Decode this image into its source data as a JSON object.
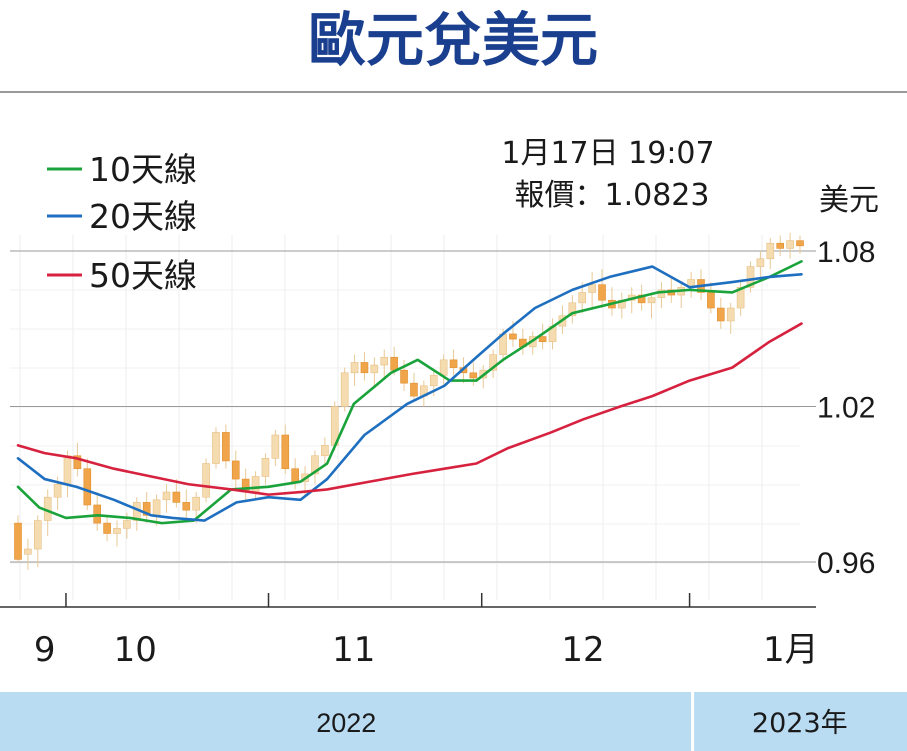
{
  "chart_data": {
    "type": "candlestick",
    "title": "歐元兌美元",
    "unit_label": "美元",
    "annotation": {
      "line1": "1月17日 19:07",
      "line2": "報價：1.0823"
    },
    "legend": [
      {
        "name": "10天線",
        "color": "#1aa33a"
      },
      {
        "name": "20天線",
        "color": "#1f6fc0"
      },
      {
        "name": "50天線",
        "color": "#d6213f"
      }
    ],
    "y_ticks": [
      {
        "value": 1.08,
        "label": "1.08"
      },
      {
        "value": 1.02,
        "label": "1.02"
      },
      {
        "value": 0.96,
        "label": "0.96"
      }
    ],
    "ylim": [
      0.94,
      1.09
    ],
    "month_labels": [
      {
        "label": "9",
        "pos": 2
      },
      {
        "label": "10",
        "pos": 22
      },
      {
        "label": "11",
        "pos": 63
      },
      {
        "label": "12",
        "pos": 106
      },
      {
        "label": "1月",
        "pos": 145
      }
    ],
    "month_ticks": [
      9,
      47,
      87,
      126
    ],
    "year_bands": [
      {
        "label": "2022",
        "from": 0,
        "to": 126
      },
      {
        "label": "2023年",
        "from": 126,
        "to": 147
      }
    ],
    "candle_colors": {
      "up": "#f5dcb0",
      "down": "#f0a54a"
    },
    "candles": [
      [
        0.975,
        0.978,
        0.96,
        0.961
      ],
      [
        0.963,
        0.969,
        0.957,
        0.965
      ],
      [
        0.965,
        0.978,
        0.958,
        0.976
      ],
      [
        0.976,
        0.988,
        0.97,
        0.985
      ],
      [
        0.985,
        0.993,
        0.98,
        0.99
      ],
      [
        0.99,
        1.003,
        0.985,
        1.001
      ],
      [
        1.001,
        1.006,
        0.993,
        0.996
      ],
      [
        0.996,
        1.0,
        0.98,
        0.982
      ],
      [
        0.982,
        0.987,
        0.972,
        0.975
      ],
      [
        0.975,
        0.978,
        0.968,
        0.971
      ],
      [
        0.971,
        0.976,
        0.966,
        0.973
      ],
      [
        0.973,
        0.979,
        0.969,
        0.976
      ],
      [
        0.976,
        0.985,
        0.972,
        0.983
      ],
      [
        0.983,
        0.987,
        0.975,
        0.978
      ],
      [
        0.978,
        0.986,
        0.974,
        0.984
      ],
      [
        0.984,
        0.99,
        0.979,
        0.987
      ],
      [
        0.987,
        0.992,
        0.981,
        0.983
      ],
      [
        0.983,
        0.988,
        0.976,
        0.98
      ],
      [
        0.98,
        0.987,
        0.975,
        0.985
      ],
      [
        0.985,
        1.0,
        0.983,
        0.998
      ],
      [
        0.998,
        1.012,
        0.996,
        1.01
      ],
      [
        1.01,
        1.013,
        0.996,
        0.999
      ],
      [
        0.999,
        1.003,
        0.988,
        0.992
      ],
      [
        0.992,
        0.996,
        0.984,
        0.987
      ],
      [
        0.987,
        0.995,
        0.984,
        0.993
      ],
      [
        0.993,
        1.002,
        0.99,
        1.0
      ],
      [
        1.0,
        1.011,
        0.997,
        1.009
      ],
      [
        1.009,
        1.013,
        0.994,
        0.996
      ],
      [
        0.996,
        1.0,
        0.988,
        0.991
      ],
      [
        0.991,
        0.997,
        0.985,
        0.994
      ],
      [
        0.994,
        1.003,
        0.99,
        1.001
      ],
      [
        1.001,
        1.008,
        0.997,
        1.005
      ],
      [
        1.005,
        1.022,
        1.003,
        1.02
      ],
      [
        1.02,
        1.035,
        1.018,
        1.033
      ],
      [
        1.033,
        1.04,
        1.028,
        1.037
      ],
      [
        1.037,
        1.041,
        1.03,
        1.033
      ],
      [
        1.033,
        1.039,
        1.028,
        1.036
      ],
      [
        1.036,
        1.042,
        1.031,
        1.039
      ],
      [
        1.039,
        1.043,
        1.032,
        1.034
      ],
      [
        1.034,
        1.038,
        1.026,
        1.029
      ],
      [
        1.029,
        1.033,
        1.022,
        1.024
      ],
      [
        1.024,
        1.03,
        1.02,
        1.028
      ],
      [
        1.028,
        1.034,
        1.024,
        1.032
      ],
      [
        1.032,
        1.04,
        1.028,
        1.038
      ],
      [
        1.038,
        1.042,
        1.032,
        1.035
      ],
      [
        1.035,
        1.039,
        1.029,
        1.033
      ],
      [
        1.033,
        1.037,
        1.028,
        1.031
      ],
      [
        1.031,
        1.036,
        1.027,
        1.034
      ],
      [
        1.034,
        1.042,
        1.031,
        1.04
      ],
      [
        1.04,
        1.05,
        1.037,
        1.048
      ],
      [
        1.048,
        1.053,
        1.043,
        1.046
      ],
      [
        1.046,
        1.05,
        1.04,
        1.043
      ],
      [
        1.043,
        1.049,
        1.04,
        1.047
      ],
      [
        1.047,
        1.052,
        1.042,
        1.045
      ],
      [
        1.045,
        1.054,
        1.042,
        1.051
      ],
      [
        1.051,
        1.059,
        1.048,
        1.055
      ],
      [
        1.055,
        1.063,
        1.052,
        1.06
      ],
      [
        1.06,
        1.068,
        1.056,
        1.064
      ],
      [
        1.064,
        1.072,
        1.058,
        1.067
      ],
      [
        1.067,
        1.073,
        1.058,
        1.061
      ],
      [
        1.061,
        1.066,
        1.055,
        1.058
      ],
      [
        1.058,
        1.064,
        1.054,
        1.061
      ],
      [
        1.061,
        1.066,
        1.056,
        1.063
      ],
      [
        1.063,
        1.067,
        1.057,
        1.06
      ],
      [
        1.06,
        1.064,
        1.054,
        1.062
      ],
      [
        1.062,
        1.068,
        1.058,
        1.065
      ],
      [
        1.065,
        1.07,
        1.06,
        1.063
      ],
      [
        1.063,
        1.068,
        1.058,
        1.066
      ],
      [
        1.066,
        1.072,
        1.062,
        1.069
      ],
      [
        1.069,
        1.073,
        1.061,
        1.064
      ],
      [
        1.064,
        1.068,
        1.056,
        1.058
      ],
      [
        1.058,
        1.062,
        1.05,
        1.053
      ],
      [
        1.053,
        1.06,
        1.048,
        1.058
      ],
      [
        1.058,
        1.068,
        1.055,
        1.066
      ],
      [
        1.066,
        1.076,
        1.064,
        1.074
      ],
      [
        1.074,
        1.08,
        1.07,
        1.077
      ],
      [
        1.077,
        1.085,
        1.073,
        1.083
      ],
      [
        1.083,
        1.086,
        1.078,
        1.081
      ],
      [
        1.081,
        1.087,
        1.077,
        1.084
      ],
      [
        1.084,
        1.086,
        1.079,
        1.082
      ]
    ],
    "ma10": [
      [
        0,
        0.989
      ],
      [
        4,
        0.981
      ],
      [
        9,
        0.977
      ],
      [
        15,
        0.978
      ],
      [
        21,
        0.977
      ],
      [
        27,
        0.975
      ],
      [
        33,
        0.976
      ],
      [
        40,
        0.988
      ],
      [
        47,
        0.989
      ],
      [
        53,
        0.991
      ],
      [
        58,
        0.998
      ],
      [
        63,
        1.021
      ],
      [
        70,
        1.033
      ],
      [
        75,
        1.038
      ],
      [
        81,
        1.03
      ],
      [
        86,
        1.03
      ],
      [
        91,
        1.038
      ],
      [
        97,
        1.046
      ],
      [
        104,
        1.056
      ],
      [
        112,
        1.06
      ],
      [
        120,
        1.064
      ],
      [
        126,
        1.065
      ],
      [
        134,
        1.064
      ],
      [
        141,
        1.07
      ],
      [
        147,
        1.076
      ]
    ],
    "ma20": [
      [
        0,
        1.0
      ],
      [
        5,
        0.992
      ],
      [
        11,
        0.989
      ],
      [
        18,
        0.984
      ],
      [
        25,
        0.978
      ],
      [
        29,
        0.977
      ],
      [
        35,
        0.976
      ],
      [
        41,
        0.983
      ],
      [
        47,
        0.985
      ],
      [
        53,
        0.984
      ],
      [
        58,
        0.992
      ],
      [
        65,
        1.009
      ],
      [
        73,
        1.021
      ],
      [
        80,
        1.028
      ],
      [
        86,
        1.039
      ],
      [
        91,
        1.048
      ],
      [
        97,
        1.058
      ],
      [
        104,
        1.065
      ],
      [
        111,
        1.07
      ],
      [
        119,
        1.074
      ],
      [
        126,
        1.066
      ],
      [
        134,
        1.068
      ],
      [
        141,
        1.07
      ],
      [
        147,
        1.071
      ]
    ],
    "ma50": [
      [
        0,
        1.005
      ],
      [
        5,
        1.002
      ],
      [
        11,
        1.0
      ],
      [
        18,
        0.996
      ],
      [
        25,
        0.993
      ],
      [
        32,
        0.99
      ],
      [
        40,
        0.988
      ],
      [
        47,
        0.986
      ],
      [
        53,
        0.987
      ],
      [
        58,
        0.988
      ],
      [
        66,
        0.991
      ],
      [
        74,
        0.994
      ],
      [
        80,
        0.996
      ],
      [
        86,
        0.998
      ],
      [
        92,
        1.004
      ],
      [
        100,
        1.01
      ],
      [
        106,
        1.015
      ],
      [
        113,
        1.02
      ],
      [
        119,
        1.024
      ],
      [
        126,
        1.03
      ],
      [
        134,
        1.035
      ],
      [
        141,
        1.045
      ],
      [
        147,
        1.052
      ]
    ]
  }
}
